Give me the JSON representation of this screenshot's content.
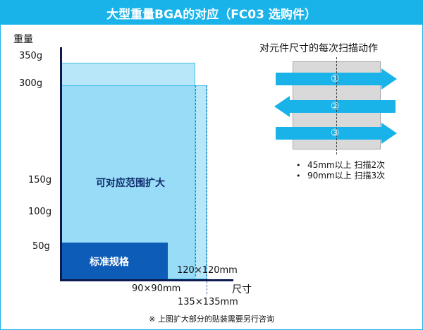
{
  "title": "大型重量BGA的对应（FC03 选购件）",
  "y_axis": {
    "title": "重量",
    "ticks": [
      "350g",
      "300g",
      "150g",
      "100g",
      "50g"
    ]
  },
  "x_axis": {
    "title": "尺寸",
    "labels": [
      "120×120mm",
      "90×90mm",
      "135×135mm"
    ]
  },
  "regions": {
    "expanded_label": "可对应范围扩大",
    "standard_label": "标准规格"
  },
  "scan": {
    "title": "对元件尺寸的每次扫描动作",
    "arrows": [
      "①",
      "②",
      "③"
    ],
    "notes": [
      "45mm以上 扫描2次",
      "90mm以上 扫描3次"
    ]
  },
  "footnote": "※ 上图扩大部分的贴装需要另行咨询",
  "colors": {
    "accent": "#19b3ea",
    "standard": "#0c5cb8",
    "expanded": "#80d4f5",
    "axis": "#0c1a4f",
    "board": "#d9d9d9"
  }
}
